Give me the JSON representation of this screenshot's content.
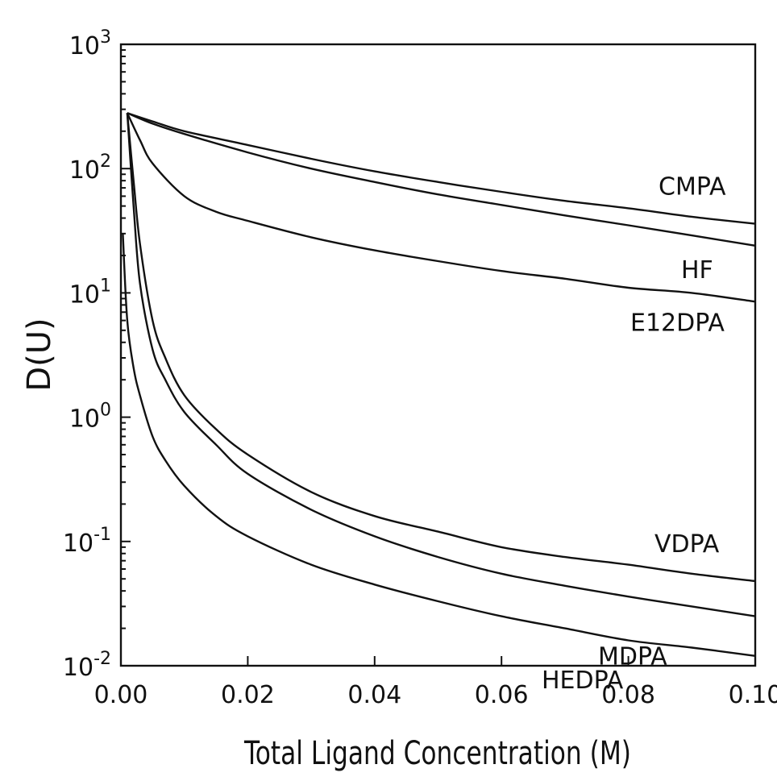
{
  "chart_data": {
    "type": "line",
    "xlabel": "Total Ligand Concentration (M)",
    "ylabel": "D(U)",
    "x_ticks": [
      "0.00",
      "0.02",
      "0.04",
      "0.06",
      "0.08",
      "0.10"
    ],
    "y_ticks": [
      {
        "base": "10",
        "exp": "3"
      },
      {
        "base": "10",
        "exp": "2"
      },
      {
        "base": "10",
        "exp": "1"
      },
      {
        "base": "10",
        "exp": "0"
      },
      {
        "base": "10",
        "exp": "-1"
      },
      {
        "base": "10",
        "exp": "-2"
      }
    ],
    "xlim": [
      0,
      0.1
    ],
    "ylim": [
      0.01,
      1000
    ],
    "yscale": "log",
    "grid": false,
    "legend": "curve labels at right end of each line",
    "series": [
      {
        "name": "CMPA",
        "x": [
          0.001,
          0.005,
          0.01,
          0.02,
          0.03,
          0.04,
          0.05,
          0.06,
          0.07,
          0.08,
          0.09,
          0.1
        ],
        "y": [
          280,
          240,
          200,
          155,
          120,
          95,
          78,
          65,
          55,
          48,
          41,
          36
        ]
      },
      {
        "name": "HF",
        "x": [
          0.001,
          0.005,
          0.01,
          0.02,
          0.03,
          0.04,
          0.05,
          0.06,
          0.07,
          0.08,
          0.09,
          0.1
        ],
        "y": [
          280,
          230,
          190,
          135,
          100,
          78,
          62,
          51,
          42,
          35,
          29,
          24
        ]
      },
      {
        "name": "E12DPA",
        "x": [
          0.001,
          0.003,
          0.005,
          0.01,
          0.015,
          0.02,
          0.03,
          0.04,
          0.05,
          0.06,
          0.07,
          0.08,
          0.09,
          0.1
        ],
        "y": [
          280,
          170,
          110,
          60,
          45,
          38,
          28,
          22,
          18,
          15,
          13,
          11,
          10,
          8.5
        ]
      },
      {
        "name": "VDPA",
        "x": [
          0.001,
          0.002,
          0.003,
          0.005,
          0.007,
          0.01,
          0.015,
          0.02,
          0.03,
          0.04,
          0.05,
          0.06,
          0.07,
          0.08,
          0.09,
          0.1
        ],
        "y": [
          280,
          80,
          25,
          6,
          3,
          1.5,
          0.8,
          0.5,
          0.25,
          0.16,
          0.12,
          0.09,
          0.075,
          0.065,
          0.055,
          0.048
        ]
      },
      {
        "name": "MDPA",
        "x": [
          0.001,
          0.002,
          0.003,
          0.005,
          0.007,
          0.01,
          0.015,
          0.02,
          0.03,
          0.04,
          0.05,
          0.06,
          0.07,
          0.08,
          0.09,
          0.1
        ],
        "y": [
          280,
          50,
          12,
          3.5,
          2,
          1.1,
          0.6,
          0.35,
          0.18,
          0.11,
          0.075,
          0.055,
          0.044,
          0.036,
          0.03,
          0.025
        ]
      },
      {
        "name": "HEDPA",
        "x": [
          0.0003,
          0.001,
          0.002,
          0.003,
          0.005,
          0.007,
          0.01,
          0.015,
          0.02,
          0.03,
          0.04,
          0.05,
          0.06,
          0.07,
          0.08,
          0.09,
          0.1
        ],
        "y": [
          30,
          6,
          2.5,
          1.5,
          0.7,
          0.45,
          0.28,
          0.16,
          0.11,
          0.065,
          0.045,
          0.033,
          0.025,
          0.02,
          0.016,
          0.014,
          0.012
        ]
      }
    ]
  }
}
